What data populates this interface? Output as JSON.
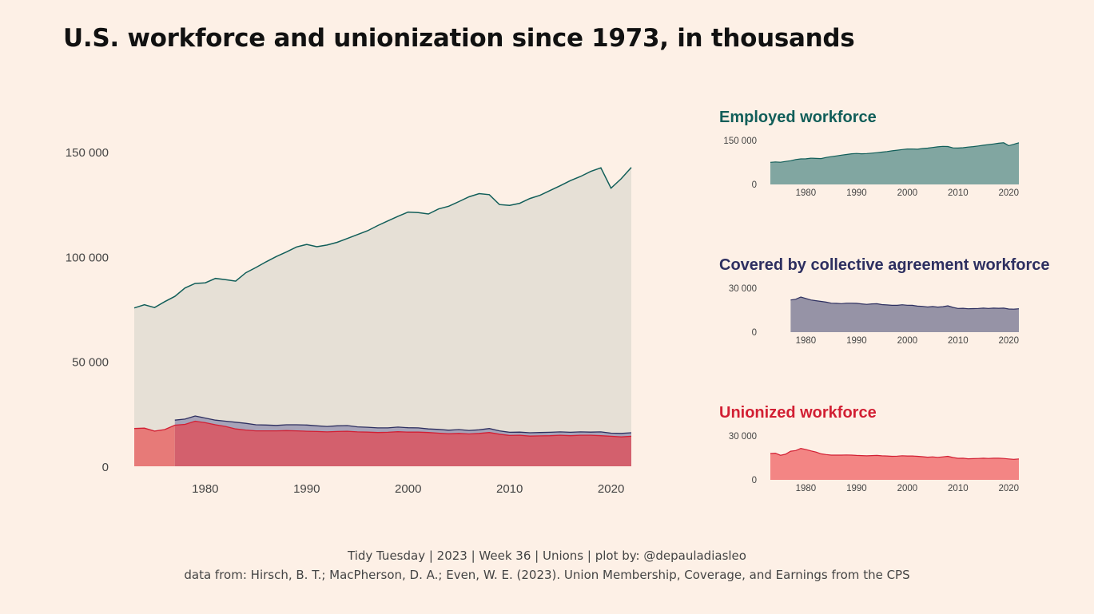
{
  "title": "U.S. workforce and unionization since 1973, in thousands",
  "caption": {
    "line1": "Tidy Tuesday | 2023 | Week 36 | Unions | plot by: @depauladiasleo",
    "line2": "data from: Hirsch, B. T.; MacPherson, D. A.; Even, W. E. (2023). Union Membership, Coverage, and Earnings from the CPS"
  },
  "colors": {
    "background": "#fdf0e6",
    "employed_line": "#115e59",
    "employed_fill_main": "#e6e0d6",
    "employed_fill_small": "#81a6a1",
    "covered_line": "#2d2f60",
    "covered_fill_main": "#a7a4b9",
    "covered_fill_small": "#9693a6",
    "union_line": "#d21f33",
    "union_fill_main": "#d3606d",
    "union_fill_early": "#e77a78",
    "union_fill_small": "#f38584"
  },
  "chart_data": [
    {
      "type": "area",
      "id": "main",
      "title": "",
      "xlabel": "",
      "ylabel": "",
      "xlim": [
        1973,
        2022
      ],
      "ylim": [
        0,
        150000
      ],
      "x_ticks": [
        "1980",
        "1990",
        "2000",
        "2010",
        "2020"
      ],
      "y_ticks": [
        "0",
        "50 000",
        "100 000",
        "150 000"
      ],
      "series": [
        {
          "key": "employed",
          "x": [
            1973,
            1974,
            1975,
            1976,
            1977,
            1978,
            1979,
            1980,
            1981,
            1982,
            1983,
            1984,
            1985,
            1986,
            1987,
            1988,
            1989,
            1990,
            1991,
            1992,
            1993,
            1994,
            1995,
            1996,
            1997,
            1998,
            1999,
            2000,
            2001,
            2002,
            2003,
            2004,
            2005,
            2006,
            2007,
            2008,
            2009,
            2010,
            2011,
            2012,
            2013,
            2014,
            2015,
            2016,
            2017,
            2018,
            2019,
            2020,
            2021,
            2022
          ],
          "values": [
            75500,
            77000,
            75700,
            78500,
            81000,
            85000,
            87200,
            87500,
            89600,
            89000,
            88300,
            92300,
            94800,
            97500,
            100000,
            102200,
            104600,
            105800,
            104700,
            105500,
            106800,
            108600,
            110500,
            112300,
            114800,
            117000,
            119200,
            121200,
            121000,
            120300,
            122700,
            124000,
            126200,
            128500,
            130000,
            129500,
            124800,
            124400,
            125400,
            127700,
            129200,
            131500,
            133800,
            136200,
            138200,
            140600,
            142300,
            132600,
            137100,
            142500
          ]
        },
        {
          "key": "covered",
          "x": [
            1977,
            1978,
            1979,
            1980,
            1981,
            1982,
            1983,
            1984,
            1985,
            1986,
            1987,
            1988,
            1989,
            1990,
            1991,
            1992,
            1993,
            1994,
            1995,
            1996,
            1997,
            1998,
            1999,
            2000,
            2001,
            2002,
            2003,
            2004,
            2005,
            2006,
            2007,
            2008,
            2009,
            2010,
            2011,
            2012,
            2013,
            2014,
            2015,
            2016,
            2017,
            2018,
            2019,
            2020,
            2021,
            2022
          ],
          "values": [
            22000,
            22500,
            24000,
            23000,
            22000,
            21500,
            21000,
            20500,
            19800,
            19700,
            19500,
            19800,
            19800,
            19700,
            19300,
            19000,
            19300,
            19400,
            18800,
            18600,
            18300,
            18300,
            18700,
            18400,
            18300,
            17800,
            17600,
            17200,
            17500,
            17100,
            17400,
            18000,
            16900,
            16200,
            16300,
            16000,
            16100,
            16200,
            16400,
            16200,
            16400,
            16300,
            16400,
            15800,
            15700,
            16000
          ]
        },
        {
          "key": "union",
          "x": [
            1973,
            1974,
            1975,
            1976,
            1977,
            1978,
            1979,
            1980,
            1981,
            1982,
            1983,
            1984,
            1985,
            1986,
            1987,
            1988,
            1989,
            1990,
            1991,
            1992,
            1993,
            1994,
            1995,
            1996,
            1997,
            1998,
            1999,
            2000,
            2001,
            2002,
            2003,
            2004,
            2005,
            2006,
            2007,
            2008,
            2009,
            2010,
            2011,
            2012,
            2013,
            2014,
            2015,
            2016,
            2017,
            2018,
            2019,
            2020,
            2021,
            2022
          ],
          "values": [
            18000,
            18200,
            16800,
            17500,
            19600,
            20000,
            21500,
            20800,
            19800,
            19000,
            17800,
            17300,
            16900,
            16900,
            16900,
            17000,
            16900,
            16700,
            16600,
            16400,
            16600,
            16700,
            16400,
            16300,
            16100,
            16200,
            16500,
            16300,
            16300,
            16100,
            15800,
            15500,
            15700,
            15400,
            15700,
            16100,
            15300,
            14700,
            14800,
            14400,
            14500,
            14600,
            14800,
            14600,
            14800,
            14800,
            14600,
            14300,
            14000,
            14300
          ]
        }
      ]
    },
    {
      "type": "area",
      "id": "employed_small",
      "title": "Employed workforce",
      "xlim": [
        1973,
        2022
      ],
      "ylim": [
        0,
        150000
      ],
      "x_ticks": [
        "1980",
        "1990",
        "2000",
        "2010",
        "2020"
      ],
      "y_ticks": [
        "0",
        "150 000"
      ],
      "series_key": "employed"
    },
    {
      "type": "area",
      "id": "covered_small",
      "title": "Covered by collective agreement workforce",
      "xlim": [
        1973,
        2022
      ],
      "ylim": [
        0,
        30000
      ],
      "x_ticks": [
        "1980",
        "1990",
        "2000",
        "2010",
        "2020"
      ],
      "y_ticks": [
        "0",
        "30 000"
      ],
      "series_key": "covered"
    },
    {
      "type": "area",
      "id": "union_small",
      "title": "Unionized workforce",
      "xlim": [
        1973,
        2022
      ],
      "ylim": [
        0,
        30000
      ],
      "x_ticks": [
        "1980",
        "1990",
        "2000",
        "2010",
        "2020"
      ],
      "y_ticks": [
        "0",
        "30 000"
      ],
      "series_key": "union"
    }
  ]
}
